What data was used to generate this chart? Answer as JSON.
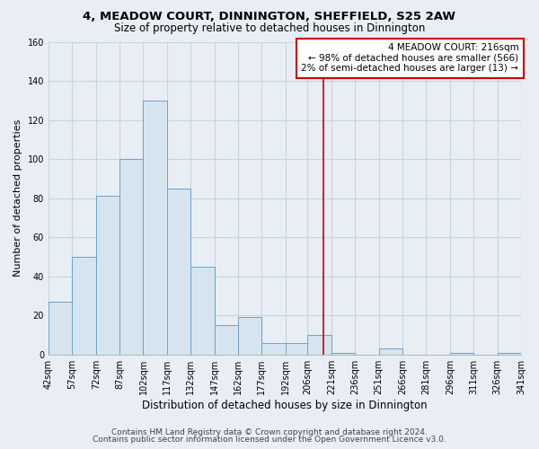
{
  "title": "4, MEADOW COURT, DINNINGTON, SHEFFIELD, S25 2AW",
  "subtitle": "Size of property relative to detached houses in Dinnington",
  "xlabel": "Distribution of detached houses by size in Dinnington",
  "ylabel": "Number of detached properties",
  "bin_edges": [
    42,
    57,
    72,
    87,
    102,
    117,
    132,
    147,
    162,
    177,
    192,
    206,
    221,
    236,
    251,
    266,
    281,
    296,
    311,
    326,
    341
  ],
  "bar_heights": [
    27,
    50,
    81,
    100,
    130,
    85,
    45,
    15,
    19,
    6,
    6,
    10,
    1,
    0,
    3,
    0,
    0,
    1,
    0,
    1
  ],
  "bar_color": "#d6e4f0",
  "bar_edgecolor": "#6ba3c8",
  "vline_x": 216,
  "vline_color": "#cc0000",
  "annotation_title": "4 MEADOW COURT: 216sqm",
  "annotation_line1": "← 98% of detached houses are smaller (566)",
  "annotation_line2": "2% of semi-detached houses are larger (13) →",
  "annotation_box_edgecolor": "#cc0000",
  "annotation_box_facecolor": "#ffffff",
  "ylim": [
    0,
    160
  ],
  "yticks": [
    0,
    20,
    40,
    60,
    80,
    100,
    120,
    140,
    160
  ],
  "tick_labels": [
    "42sqm",
    "57sqm",
    "72sqm",
    "87sqm",
    "102sqm",
    "117sqm",
    "132sqm",
    "147sqm",
    "162sqm",
    "177sqm",
    "192sqm",
    "206sqm",
    "221sqm",
    "236sqm",
    "251sqm",
    "266sqm",
    "281sqm",
    "296sqm",
    "311sqm",
    "326sqm",
    "341sqm"
  ],
  "footnote1": "Contains HM Land Registry data © Crown copyright and database right 2024.",
  "footnote2": "Contains public sector information licensed under the Open Government Licence v3.0.",
  "bg_color": "#e8eef4",
  "plot_bg_color": "#e8eef4",
  "grid_color": "#c8d4e0",
  "title_fontsize": 9.5,
  "subtitle_fontsize": 8.5,
  "xlabel_fontsize": 8.5,
  "ylabel_fontsize": 8,
  "tick_fontsize": 7,
  "annot_fontsize": 7.5,
  "footnote_fontsize": 6.5
}
